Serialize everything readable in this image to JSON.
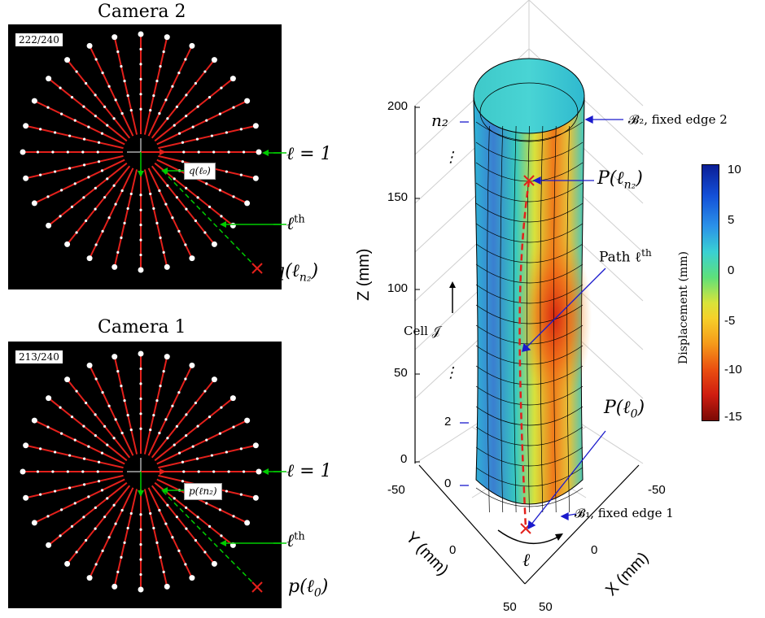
{
  "camera2": {
    "title": "Camera 2",
    "frame_counter": "222/240",
    "labels": {
      "ell_eq_1": "ℓ = 1",
      "ell_th_base": "ℓ",
      "ell_th_sup": "th",
      "q_end_base": "q(ℓ",
      "q_end_sub": "n₂",
      "q_end_close": ")",
      "inset": "q(ℓ₀)"
    }
  },
  "camera1": {
    "title": "Camera 1",
    "frame_counter": "213/240",
    "labels": {
      "ell_eq_1": "ℓ = 1",
      "ell_th_base": "ℓ",
      "ell_th_sup": "th",
      "p_end_base": "p(ℓ",
      "p_end_sub": "0",
      "p_end_close": ")",
      "inset": "p(ℓn₂)"
    }
  },
  "plot3d": {
    "z_axis_label": "Z (mm)",
    "y_axis_label": "Y (mm)",
    "x_axis_label": "X (mm)",
    "z_ticks": [
      "200",
      "150",
      "100",
      "50",
      "0"
    ],
    "y_ticks": [
      "-50",
      "0",
      "50"
    ],
    "x_ticks": [
      "-50",
      "0",
      "50"
    ],
    "index_labels": {
      "n2": "n₂",
      "two": "2",
      "zero": "0",
      "dots": "⋮"
    },
    "annotations": {
      "b2_label": "𝓑₂, fixed edge 2",
      "b1_label": "𝓑₁, fixed edge 1",
      "p_top_base": "P(ℓ",
      "p_top_sub": "n₂",
      "p_top_close": ")",
      "p_bottom_base": "P(ℓ",
      "p_bottom_sub": "0",
      "p_bottom_close": ")",
      "path_label": "Path ℓ",
      "path_sup": "th",
      "cell_label": "Cell 𝒥",
      "ell_label": "ℓ"
    }
  },
  "colorbar": {
    "label": "Displacement (mm)",
    "ticks": [
      "10",
      "5",
      "0",
      "-5",
      "-10",
      "-15"
    ],
    "range": [
      -15,
      10
    ]
  },
  "colors": {
    "ray": "#e3201b",
    "arrow": "#00cc00",
    "annotation": "#1a1acc",
    "highlight": "#e3201b"
  }
}
